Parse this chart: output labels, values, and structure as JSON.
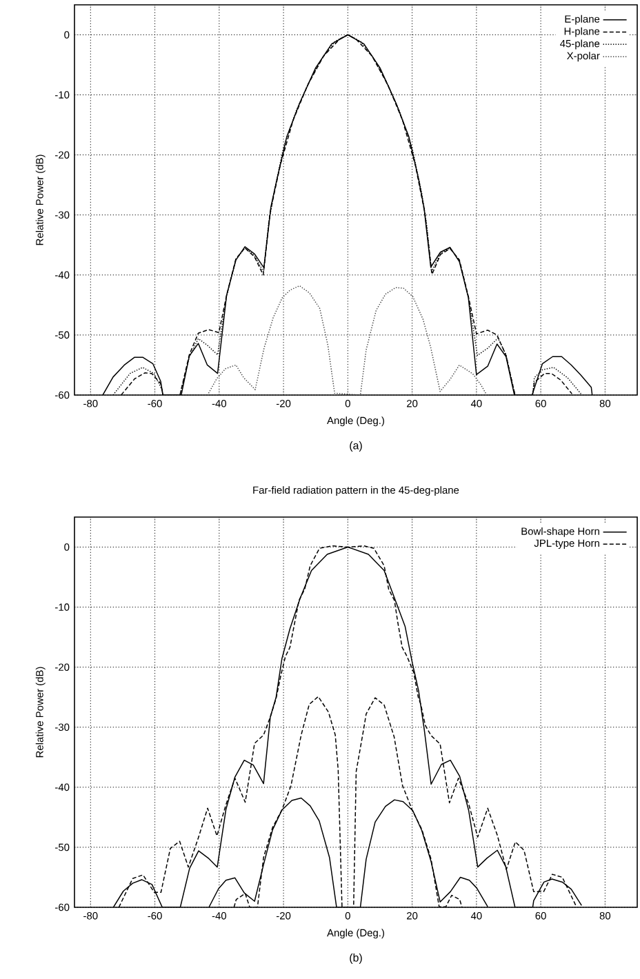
{
  "chart_data": [
    {
      "type": "line",
      "xlabel": "Angle (Deg.)",
      "ylabel": "Relative Power (dB)",
      "annotations": [
        "(a)"
      ],
      "xlim": [
        -85,
        90
      ],
      "ylim": [
        -60,
        5
      ],
      "xticks": [
        -80,
        -60,
        -40,
        -20,
        0,
        20,
        40,
        60,
        80
      ],
      "yticks": [
        -60,
        -50,
        -40,
        -30,
        -20,
        -10,
        0
      ],
      "grid": true,
      "legend": "top right",
      "series": [
        {
          "name": "E-plane",
          "color": "#000000",
          "line_style": "solid",
          "x": [
            -76.2,
            -73,
            -69.5,
            -66.3,
            -63.8,
            -60.6,
            -58.2,
            -57.5,
            -51.8,
            -49.3,
            -46.5,
            -43.7,
            -40.5,
            -37.7,
            -34.8,
            -32,
            -29,
            -26.1,
            -23.9,
            -22,
            -19,
            -15,
            -10,
            -5,
            0,
            5,
            10,
            15,
            19,
            22,
            23.7,
            25.8,
            28.8,
            31.8,
            34.7,
            37.5,
            40,
            43.5,
            46.4,
            49.2,
            51.8,
            57.3,
            60.5,
            63.7,
            66.5,
            69.5,
            72.5,
            75.7,
            76
          ],
          "values": [
            -60,
            -57,
            -55,
            -53.7,
            -53.7,
            -54.8,
            -57.7,
            -60,
            -60,
            -53.5,
            -51.4,
            -55,
            -56.4,
            -43.4,
            -37.5,
            -35.3,
            -36.5,
            -38.8,
            -28.6,
            -24,
            -17,
            -11.4,
            -5.5,
            -1.5,
            0,
            -1.5,
            -5.5,
            -11.4,
            -17,
            -24,
            -28.8,
            -38.7,
            -36.2,
            -35.4,
            -37.8,
            -43.8,
            -56.6,
            -55.2,
            -51.5,
            -53.6,
            -60,
            -60,
            -54.8,
            -53.6,
            -53.6,
            -55,
            -56.7,
            -58.7,
            -60
          ]
        },
        {
          "name": "H-plane",
          "color": "#000000",
          "line_style": "dashed",
          "x": [
            -70.5,
            -66.3,
            -63.1,
            -61,
            -58.2,
            -57.5,
            -52.2,
            -49.3,
            -46.5,
            -43.3,
            -40.1,
            -37.7,
            -34.8,
            -32,
            -29,
            -26.3,
            -24.2,
            -21,
            -17,
            -12.5,
            -7.5,
            -2.5,
            0,
            2.5,
            7.5,
            12.5,
            17,
            21,
            24,
            26.2,
            28.8,
            31.8,
            34.7,
            37.5,
            40,
            43.5,
            46.4,
            49.2,
            52,
            57.5,
            58,
            61.2,
            63.3,
            66.2,
            69.7
          ],
          "values": [
            -60,
            -57.3,
            -56.3,
            -56.4,
            -58.1,
            -60,
            -60,
            -53.3,
            -49.7,
            -49.1,
            -49.6,
            -43.4,
            -37.3,
            -35.5,
            -37,
            -40,
            -29.7,
            -21.7,
            -14.2,
            -8.4,
            -3.5,
            -0.7,
            0,
            -0.7,
            -3.5,
            -8.4,
            -14.2,
            -21.7,
            -29.8,
            -39.9,
            -36.6,
            -35.6,
            -37.5,
            -43.6,
            -49.8,
            -49.2,
            -50,
            -53.4,
            -60,
            -60,
            -57.9,
            -56.4,
            -56.4,
            -57.5,
            -59.8
          ]
        },
        {
          "name": "45-plane",
          "color": "#000000",
          "line_style": "dotted",
          "x": [
            -73,
            -67.7,
            -63.8,
            -60.3,
            -57.8,
            -57.5,
            -52.2,
            -49.3,
            -46.5,
            -43.7,
            -40.5,
            -37.7,
            -34.8,
            -32,
            -29,
            -26.2,
            -24.6,
            -23,
            -20,
            -16,
            -12,
            -8,
            -4,
            0,
            4,
            8,
            12,
            16,
            20,
            23,
            24.5,
            26,
            28.8,
            31.8,
            34.7,
            37.5,
            40.3,
            43.5,
            46.7,
            49.2,
            52,
            57.5,
            58,
            60.5,
            64,
            68.3,
            72.5
          ],
          "values": [
            -60,
            -56.4,
            -55.4,
            -56.4,
            -59.1,
            -60,
            -60,
            -53.7,
            -50.6,
            -51.7,
            -53.3,
            -43.5,
            -37.4,
            -35.5,
            -36.8,
            -39.5,
            -31.3,
            -26.4,
            -18.8,
            -12.6,
            -7.8,
            -3.9,
            -1.1,
            0,
            -1.1,
            -3.9,
            -7.8,
            -12.6,
            -18.8,
            -26.4,
            -31.5,
            -39.5,
            -36.4,
            -35.5,
            -37.6,
            -43.7,
            -53.4,
            -52.2,
            -50.5,
            -53.3,
            -60,
            -60,
            -57.1,
            -55.8,
            -55.4,
            -57.1,
            -59.8
          ]
        },
        {
          "name": "X-polar",
          "color": "#444444",
          "line_style": "dotted",
          "x": [
            -43.3,
            -40.8,
            -38,
            -34.8,
            -32.4,
            -28.8,
            -26,
            -23.2,
            -20.4,
            -17.9,
            -15,
            -11.9,
            -8.7,
            -6.2,
            -4.1,
            3.9,
            5.7,
            8.8,
            11.7,
            14.9,
            17.3,
            20.2,
            23.4,
            25.8,
            28.7,
            31.8,
            34.7,
            38.9,
            41.4,
            43.2
          ],
          "values": [
            -59.7,
            -57.3,
            -55.6,
            -55,
            -57.1,
            -59.1,
            -52.1,
            -47.1,
            -43.8,
            -42.5,
            -41.8,
            -43,
            -45.6,
            -51.7,
            -59.7,
            -60,
            -52.5,
            -45.9,
            -43.2,
            -42.1,
            -42.2,
            -43.6,
            -47.4,
            -52.1,
            -59.4,
            -57.4,
            -55,
            -56.5,
            -58.3,
            -60
          ]
        }
      ]
    },
    {
      "type": "line",
      "title": "Far-field radiation pattern in the 45-deg-plane",
      "xlabel": "Angle (Deg.)",
      "ylabel": "Relative Power (dB)",
      "annotations": [
        "(b)"
      ],
      "xlim": [
        -85,
        90
      ],
      "ylim": [
        -60,
        5
      ],
      "xticks": [
        -80,
        -60,
        -40,
        -20,
        0,
        20,
        40,
        60,
        80
      ],
      "yticks": [
        -60,
        -50,
        -40,
        -30,
        -20,
        -10,
        0
      ],
      "grid": true,
      "legend": "top right",
      "series": [
        {
          "name": "Bowl-shape Horn",
          "color": "#000000",
          "line_style": "solid",
          "x": [
            -72.9,
            -69.8,
            -66.9,
            -64.1,
            -60.9,
            -57.7,
            -52.1,
            -49.2,
            -46.4,
            -43.2,
            -40.6,
            -37.9,
            -35.1,
            -32.2,
            -29.4,
            -26.2,
            -24.1,
            -22.3,
            -20.5,
            -18,
            -14.8,
            -11.3,
            -6.4,
            0,
            6.4,
            11.3,
            14.8,
            17.8,
            20.1,
            22,
            23.8,
            25.9,
            29.1,
            31.9,
            34.8,
            37.6,
            40.4,
            43.3,
            46.5,
            49.1,
            52,
            57.5,
            57.8,
            61,
            63.5,
            66.7,
            69.5,
            72.7
          ],
          "values": [
            -60,
            -57.3,
            -56,
            -55.4,
            -56.2,
            -60,
            -60,
            -53.5,
            -50.6,
            -51.9,
            -53.3,
            -43.7,
            -38.3,
            -35.5,
            -36.3,
            -39.4,
            -28.3,
            -25,
            -18.6,
            -13.6,
            -8.5,
            -3.9,
            -1.2,
            0,
            -1.2,
            -3.9,
            -8.9,
            -13.2,
            -19.4,
            -23.9,
            -30.5,
            -39.5,
            -36.2,
            -35.5,
            -38.2,
            -43.9,
            -53.3,
            -51.8,
            -50.5,
            -53.2,
            -60,
            -60,
            -58.9,
            -55.8,
            -55.3,
            -55.8,
            -57,
            -59.7
          ]
        },
        {
          "name": "JPL-type Horn",
          "color": "#000000",
          "line_style": "dashed",
          "x": [
            -71.2,
            -66.9,
            -63.7,
            -60.2,
            -58.1,
            -55.2,
            -52.3,
            -49.6,
            -46.4,
            -43.6,
            -40.7,
            -37.9,
            -35.1,
            -31.9,
            -29,
            -26.2,
            -24.1,
            -22.3,
            -20.8,
            -19.4,
            -18,
            -16.6,
            -15.2,
            -13.4,
            -11.7,
            -8.8,
            -4.9,
            0,
            5,
            8.1,
            11.3,
            12.7,
            14.5,
            15.5,
            16.9,
            18.4,
            20.5,
            21.9,
            22.7,
            24.1,
            25.9,
            28.7,
            31.6,
            34.4,
            37.6,
            40.4,
            43.5,
            46.5,
            49.3,
            52.1,
            54.8,
            57.8,
            60.9,
            63.6,
            66.7,
            70.9
          ],
          "values": [
            -60,
            -55.2,
            -54.6,
            -57.5,
            -57.5,
            -50.2,
            -49,
            -53.3,
            -48.3,
            -43.5,
            -48.1,
            -42.9,
            -38.5,
            -42.5,
            -32.7,
            -31.3,
            -28.3,
            -25.2,
            -21.3,
            -18.2,
            -16.7,
            -12.8,
            -8.9,
            -7,
            -3.1,
            -0.2,
            0.2,
            0,
            0.2,
            -0.2,
            -3.1,
            -7,
            -8.9,
            -12.4,
            -16.7,
            -18.2,
            -20.9,
            -25,
            -26.2,
            -29.7,
            -31.4,
            -32.8,
            -42.6,
            -38.5,
            -42.8,
            -48.3,
            -43.5,
            -48,
            -53.7,
            -49.1,
            -50.5,
            -57.4,
            -57.4,
            -54.5,
            -55,
            -59.7
          ]
        },
        {
          "color": "#000000",
          "line_style": "solid",
          "x": [
            -43.2,
            -40.2,
            -37.9,
            -35.1,
            -32.2,
            -29,
            -26.2,
            -23.4,
            -20.5,
            -17.4,
            -14.5,
            -11.7,
            -8.9,
            -5.7,
            -3.5,
            3.9,
            5.7,
            8.5,
            11.7,
            14.5,
            17.2,
            20.2,
            23,
            25.9,
            28.7,
            31.9,
            35,
            37.8,
            40.1,
            43.5
          ],
          "values": [
            -60,
            -56.9,
            -55.5,
            -55.1,
            -57.6,
            -59,
            -52.9,
            -47.1,
            -43.8,
            -42.2,
            -41.8,
            -43.1,
            -45.6,
            -51.7,
            -60,
            -60,
            -52,
            -45.8,
            -43.2,
            -42.1,
            -42.4,
            -43.9,
            -47.2,
            -52.4,
            -59.1,
            -57.4,
            -55,
            -55.5,
            -56.8,
            -59.9
          ]
        },
        {
          "color": "#000000",
          "line_style": "dashed",
          "x": [
            -35.4,
            -34.7,
            -31.9,
            -30.5,
            -28.1,
            -26.2,
            -23.4,
            -20.5,
            -17.7,
            -14.5,
            -12,
            -9.2,
            -6,
            -3.9,
            -3,
            -1.8,
            1.8,
            2.6,
            5,
            5.7,
            8.5,
            11.3,
            14.4,
            17,
            20.1,
            23,
            25.9,
            28.4,
            30.5,
            32.3,
            34.8,
            35.5
          ],
          "values": [
            -60,
            -58.7,
            -57.7,
            -60,
            -60,
            -51.7,
            -46.7,
            -43.8,
            -39.8,
            -31.3,
            -26.2,
            -24.9,
            -27.5,
            -31.3,
            -37.1,
            -60,
            -60,
            -37.4,
            -30.1,
            -27.8,
            -25.1,
            -26.3,
            -31.6,
            -39.7,
            -43.9,
            -47,
            -52,
            -59.9,
            -59.9,
            -58,
            -58.7,
            -60
          ]
        }
      ]
    }
  ]
}
